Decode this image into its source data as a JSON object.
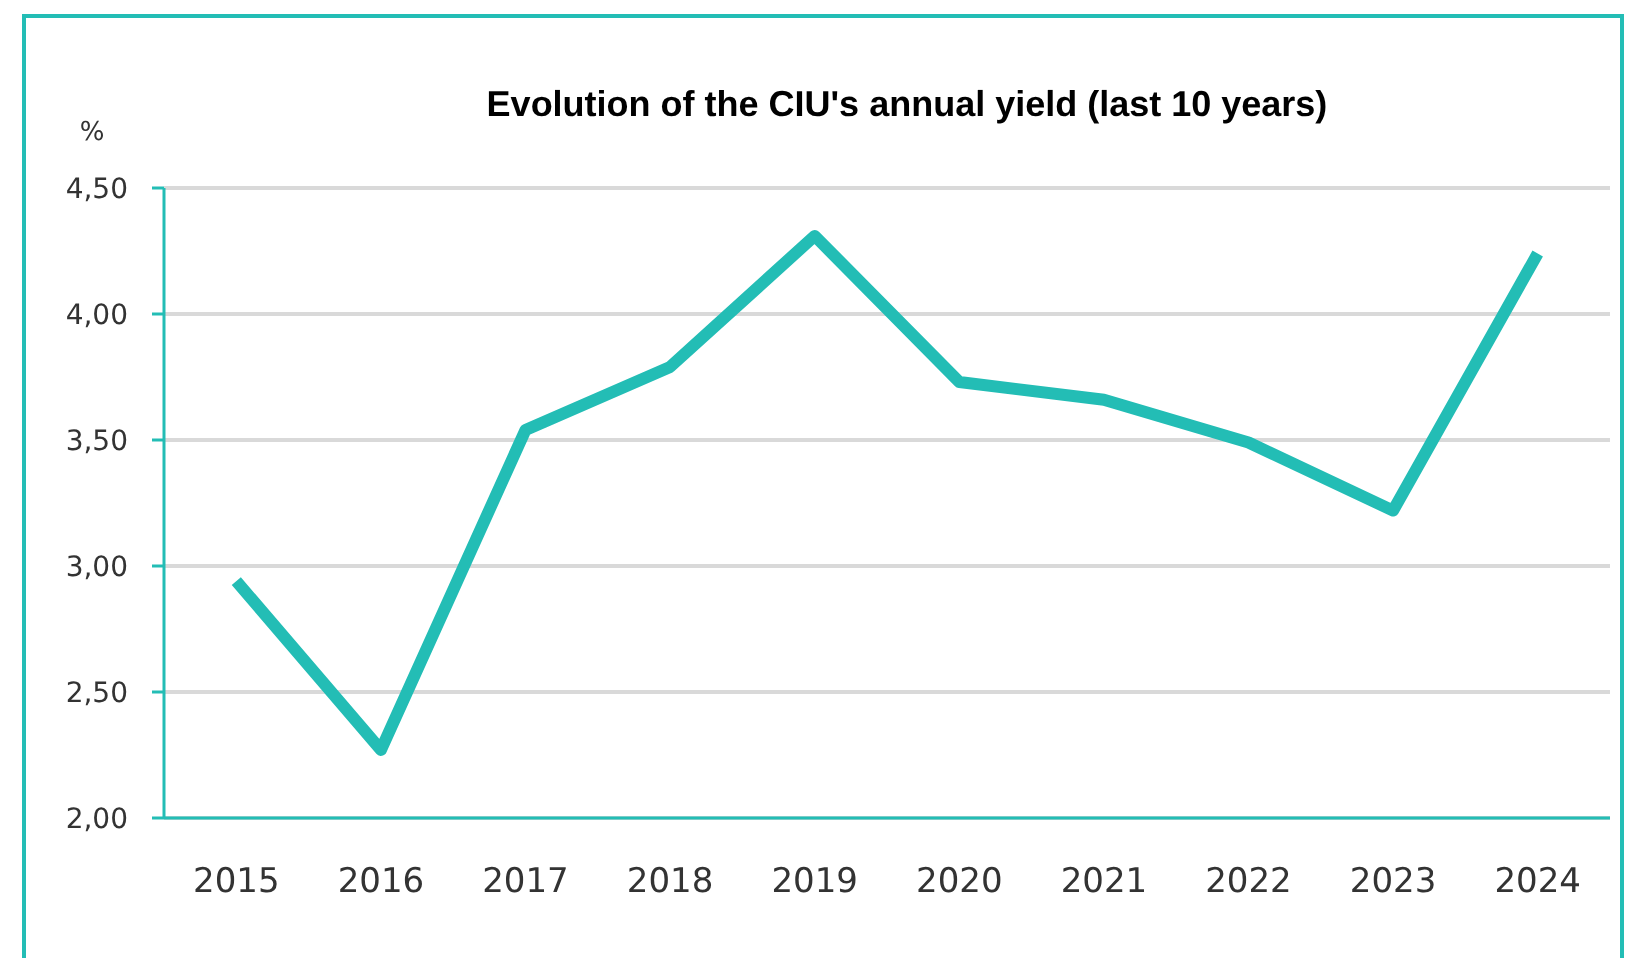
{
  "chart_data": {
    "type": "line",
    "title": "Evolution of the CIU's annual yield (last 10 years)",
    "ylabel": "%",
    "categories": [
      "2015",
      "2016",
      "2017",
      "2018",
      "2019",
      "2020",
      "2021",
      "2022",
      "2023",
      "2024"
    ],
    "series": [
      {
        "color": "#23bdb5",
        "values": [
          2.94,
          2.27,
          3.54,
          3.79,
          4.31,
          3.73,
          3.66,
          3.49,
          3.22,
          4.24
        ]
      }
    ],
    "ylim": [
      2,
      4.5
    ],
    "yticks": [
      {
        "value": 2,
        "label": "2,00"
      },
      {
        "value": 2.5,
        "label": "2,50"
      },
      {
        "value": 3,
        "label": "3,00"
      },
      {
        "value": 3.5,
        "label": "3,50"
      },
      {
        "value": 4,
        "label": "4,00"
      },
      {
        "value": 4.5,
        "label": "4,50"
      }
    ],
    "grid": "y",
    "marker": "none",
    "line_style": "solid"
  }
}
